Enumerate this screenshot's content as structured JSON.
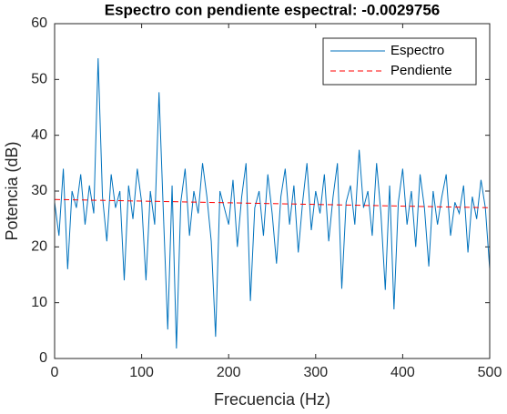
{
  "chart_data": {
    "type": "line",
    "title": "Espectro con pendiente espectral: -0.0029756",
    "xlabel": "Frecuencia (Hz)",
    "ylabel": "Potencia (dB)",
    "xlim": [
      0,
      500
    ],
    "ylim": [
      0,
      60
    ],
    "xticks": [
      0,
      100,
      200,
      300,
      400,
      500
    ],
    "yticks": [
      0,
      10,
      20,
      30,
      40,
      50,
      60
    ],
    "legend": "northeast",
    "series": [
      {
        "name": "Espectro",
        "color": "#0072bd",
        "style": "solid",
        "x": [
          0,
          5,
          10,
          15,
          20,
          25,
          30,
          35,
          40,
          45,
          50,
          55,
          60,
          65,
          70,
          75,
          80,
          85,
          90,
          95,
          100,
          105,
          110,
          115,
          120,
          125,
          130,
          135,
          140,
          145,
          150,
          155,
          160,
          165,
          170,
          175,
          180,
          185,
          190,
          195,
          200,
          205,
          210,
          215,
          220,
          225,
          230,
          235,
          240,
          245,
          250,
          255,
          260,
          265,
          270,
          275,
          280,
          285,
          290,
          295,
          300,
          305,
          310,
          315,
          320,
          325,
          330,
          335,
          340,
          345,
          350,
          355,
          360,
          365,
          370,
          375,
          380,
          385,
          390,
          395,
          400,
          405,
          410,
          415,
          420,
          425,
          430,
          435,
          440,
          445,
          450,
          455,
          460,
          465,
          470,
          475,
          480,
          485,
          490,
          495,
          500
        ],
        "values": [
          28,
          22,
          34,
          16,
          30,
          27,
          33,
          24,
          31,
          26,
          53.8,
          29,
          21,
          33,
          27,
          30,
          14,
          31,
          25,
          34,
          28,
          14,
          30,
          24,
          47.7,
          26,
          5.2,
          31,
          1.8,
          28,
          34,
          22,
          30,
          26,
          35,
          29,
          21,
          3.9,
          30,
          27,
          24,
          32,
          20,
          29,
          35,
          10.3,
          27,
          30,
          22,
          33,
          26,
          17,
          29,
          34,
          24,
          31,
          19,
          28,
          35,
          23,
          30,
          26,
          33,
          21,
          29,
          35,
          12.5,
          28,
          31,
          24,
          37.4,
          27,
          30,
          22,
          35,
          26,
          12.3,
          31,
          8.8,
          28,
          34,
          24,
          30,
          20,
          33,
          27,
          16.5,
          30,
          24,
          29,
          33,
          22,
          28,
          26,
          31,
          19,
          29,
          25,
          32,
          27,
          16
        ]
      },
      {
        "name": "Pendiente",
        "color": "#ff0000",
        "style": "dashed",
        "x": [
          0,
          500
        ],
        "values": [
          28.5,
          27.01
        ]
      }
    ]
  }
}
